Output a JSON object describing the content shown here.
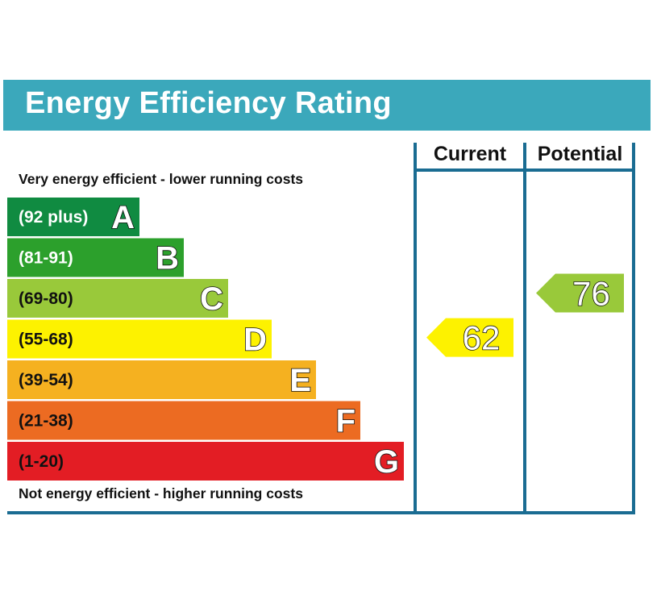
{
  "title": "Energy Efficiency Rating",
  "note_top": "Very energy efficient - lower running costs",
  "note_bottom": "Not energy efficient - higher running costs",
  "columns": {
    "current": "Current",
    "potential": "Potential"
  },
  "chart_data": {
    "type": "bar",
    "categories": [
      "A",
      "B",
      "C",
      "D",
      "E",
      "F",
      "G"
    ],
    "bands": [
      {
        "letter": "A",
        "range": "(92 plus)",
        "min": 92,
        "max": null,
        "color": "#108b41"
      },
      {
        "letter": "B",
        "range": "(81-91)",
        "min": 81,
        "max": 91,
        "color": "#2ca02c"
      },
      {
        "letter": "C",
        "range": "(69-80)",
        "min": 69,
        "max": 80,
        "color": "#99c93a"
      },
      {
        "letter": "D",
        "range": "(55-68)",
        "min": 55,
        "max": 68,
        "color": "#fdf200"
      },
      {
        "letter": "E",
        "range": "(39-54)",
        "min": 39,
        "max": 54,
        "color": "#f5b120"
      },
      {
        "letter": "F",
        "range": "(21-38)",
        "min": 21,
        "max": 38,
        "color": "#ec6b22"
      },
      {
        "letter": "G",
        "range": "(1-20)",
        "min": 1,
        "max": 20,
        "color": "#e31d24"
      }
    ],
    "current": {
      "value": 62,
      "label": "62",
      "band": "D",
      "color": "#fdf200"
    },
    "potential": {
      "value": 76,
      "label": "76",
      "band": "C",
      "color": "#99c93a"
    }
  },
  "colors": {
    "header": "#3ba8bb",
    "frame": "#1a6c92"
  }
}
